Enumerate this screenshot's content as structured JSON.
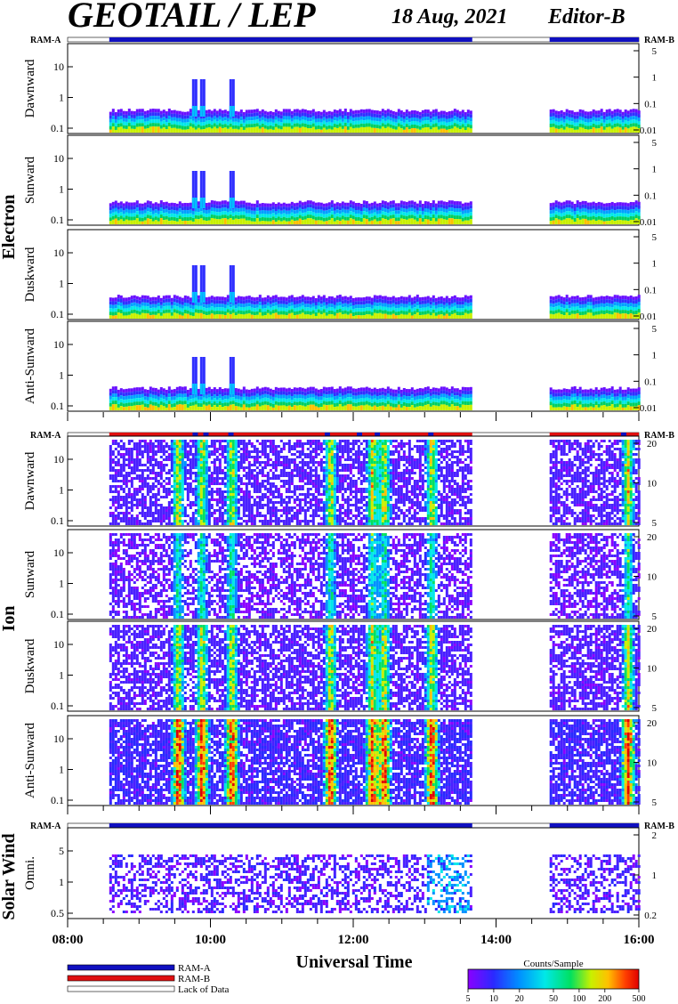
{
  "header": {
    "title": "GEOTAIL / LEP",
    "date": "18 Aug, 2021",
    "editor": "Editor-B"
  },
  "ram_labels": {
    "left": "RAM-A",
    "right": "RAM-B"
  },
  "groups": [
    {
      "name": "Electron",
      "panels": [
        {
          "label": "Dawnward",
          "left_ticks": [
            "10",
            "1",
            "0.1"
          ],
          "right_ticks": [
            "5",
            "1",
            "0.1",
            "0.01"
          ]
        },
        {
          "label": "Sunward",
          "left_ticks": [
            "10",
            "1",
            "0.1"
          ],
          "right_ticks": [
            "5",
            "1",
            "0.1",
            "0.01"
          ]
        },
        {
          "label": "Duskward",
          "left_ticks": [
            "10",
            "1",
            "0.1"
          ],
          "right_ticks": [
            "5",
            "1",
            "0.1",
            "0.01"
          ]
        },
        {
          "label": "Anti-Sunward",
          "left_ticks": [
            "10",
            "1",
            "0.1"
          ],
          "right_ticks": [
            "5",
            "1",
            "0.1",
            "0.01"
          ]
        }
      ]
    },
    {
      "name": "Ion",
      "panels": [
        {
          "label": "Dawnward",
          "left_ticks": [
            "10",
            "1",
            "0.1"
          ],
          "right_ticks": [
            "20",
            "10",
            "5"
          ]
        },
        {
          "label": "Sunward",
          "left_ticks": [
            "10",
            "1",
            "0.1"
          ],
          "right_ticks": [
            "20",
            "10",
            "5"
          ]
        },
        {
          "label": "Duskward",
          "left_ticks": [
            "10",
            "1",
            "0.1"
          ],
          "right_ticks": [
            "20",
            "10",
            "5"
          ]
        },
        {
          "label": "Anti-Sunward",
          "left_ticks": [
            "10",
            "1",
            "0.1"
          ],
          "right_ticks": [
            "20",
            "10",
            "5"
          ]
        }
      ]
    },
    {
      "name": "Solar Wind",
      "panels": [
        {
          "label": "Omni.",
          "left_ticks": [
            "5",
            "1",
            "0.5"
          ],
          "right_ticks": [
            "2",
            "1",
            "0.2"
          ]
        }
      ]
    }
  ],
  "x_axis": {
    "label": "Universal Time",
    "ticks": [
      "08:00",
      "10:00",
      "12:00",
      "14:00",
      "16:00"
    ]
  },
  "legend": {
    "items": [
      {
        "label": "RAM-A",
        "color": "#1010c0"
      },
      {
        "label": "RAM-B",
        "color": "#e01010"
      },
      {
        "label": "Lack of Data",
        "color": "#ffffff"
      }
    ]
  },
  "colorbar": {
    "title": "Counts/Sample",
    "ticks": [
      "5",
      "10",
      "20",
      "50",
      "100",
      "200",
      "500"
    ]
  },
  "chart_data": {
    "type": "heatmap",
    "title": "GEOTAIL / LEP",
    "xlabel": "Universal Time",
    "x_range": [
      "08:00",
      "16:00"
    ],
    "color_scale": "log",
    "color_range": [
      5,
      500
    ],
    "data_intervals": [
      [
        "08:35",
        "13:40"
      ],
      [
        "14:45",
        "16:00"
      ]
    ],
    "ram_b_interval_ion": [
      [
        "08:35",
        "13:40"
      ],
      [
        "14:45",
        "16:00"
      ]
    ],
    "electron_spike_times": [
      "09:45",
      "09:52",
      "10:17"
    ],
    "ion_enhancement_times": [
      "09:32",
      "09:52",
      "10:17",
      "11:40",
      "12:15",
      "12:25",
      "13:05",
      "15:50"
    ]
  }
}
